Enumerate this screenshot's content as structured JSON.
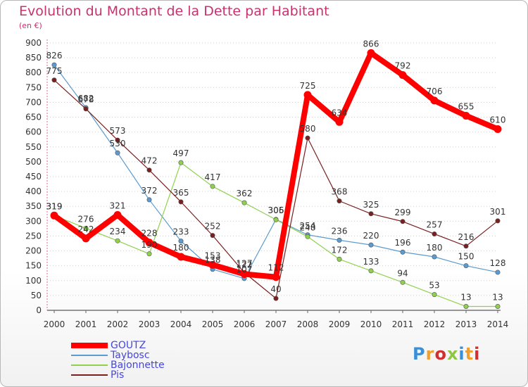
{
  "chart_data": {
    "type": "line",
    "title": "Evolution du Montant de la Dette par Habitant",
    "ylabel": "(en €)",
    "xlabel": "",
    "ylim": [
      0,
      900
    ],
    "yticks": [
      0,
      50,
      100,
      150,
      200,
      250,
      300,
      350,
      400,
      450,
      500,
      550,
      600,
      650,
      700,
      750,
      800,
      850,
      900
    ],
    "x": [
      "2000",
      "2001",
      "2002",
      "2003",
      "2004",
      "2005",
      "2006",
      "2007",
      "2008",
      "2009",
      "2010",
      "2011",
      "2012",
      "2013",
      "2014"
    ],
    "grid": "dotted horizontal",
    "legend_position": "bottom-left",
    "series": [
      {
        "name": "GOUTZ",
        "color": "#ff0000",
        "values": [
          319,
          242,
          321,
          228,
          180,
          153,
          122,
          112,
          725,
          634,
          866,
          792,
          706,
          655,
          610
        ],
        "labels": [
          "319",
          "242",
          "321",
          "228",
          "180",
          "153",
          "122",
          "112",
          "725",
          "634",
          "866",
          "792",
          "706",
          "655",
          "610"
        ]
      },
      {
        "name": "Taybosc",
        "color": "#5b9bd0",
        "values": [
          826,
          682,
          530,
          372,
          233,
          138,
          107,
          306,
          254,
          236,
          220,
          196,
          180,
          150,
          128
        ],
        "labels": [
          "826",
          "682",
          "530",
          "372",
          "233",
          "138",
          "107",
          "306",
          "254",
          "236",
          "220",
          "196",
          "180",
          "150",
          "128"
        ]
      },
      {
        "name": "Bajonnette",
        "color": "#8fd14f",
        "values": [
          319,
          276,
          234,
          190,
          497,
          417,
          362,
          305,
          248,
          172,
          133,
          94,
          53,
          13,
          13
        ],
        "labels": [
          "319",
          "276",
          "234",
          "190",
          "497",
          "417",
          "362",
          "305",
          "248",
          "172",
          "133",
          "94",
          "53",
          "13",
          "13"
        ]
      },
      {
        "name": "Pis",
        "color": "#7a1f1f",
        "values": [
          775,
          678,
          573,
          472,
          365,
          252,
          127,
          40,
          580,
          368,
          325,
          299,
          257,
          216,
          301
        ],
        "labels": [
          "775",
          "678",
          "573",
          "472",
          "365",
          "252",
          "127",
          "40",
          "580",
          "368",
          "325",
          "299",
          "257",
          "216",
          "301"
        ]
      }
    ]
  },
  "logo": {
    "text": "Proxiti",
    "colors": [
      "#3a8fd8",
      "#f0a030",
      "#d03030",
      "#8dc63f",
      "#3a8fd8",
      "#f0a030",
      "#d03030"
    ]
  }
}
